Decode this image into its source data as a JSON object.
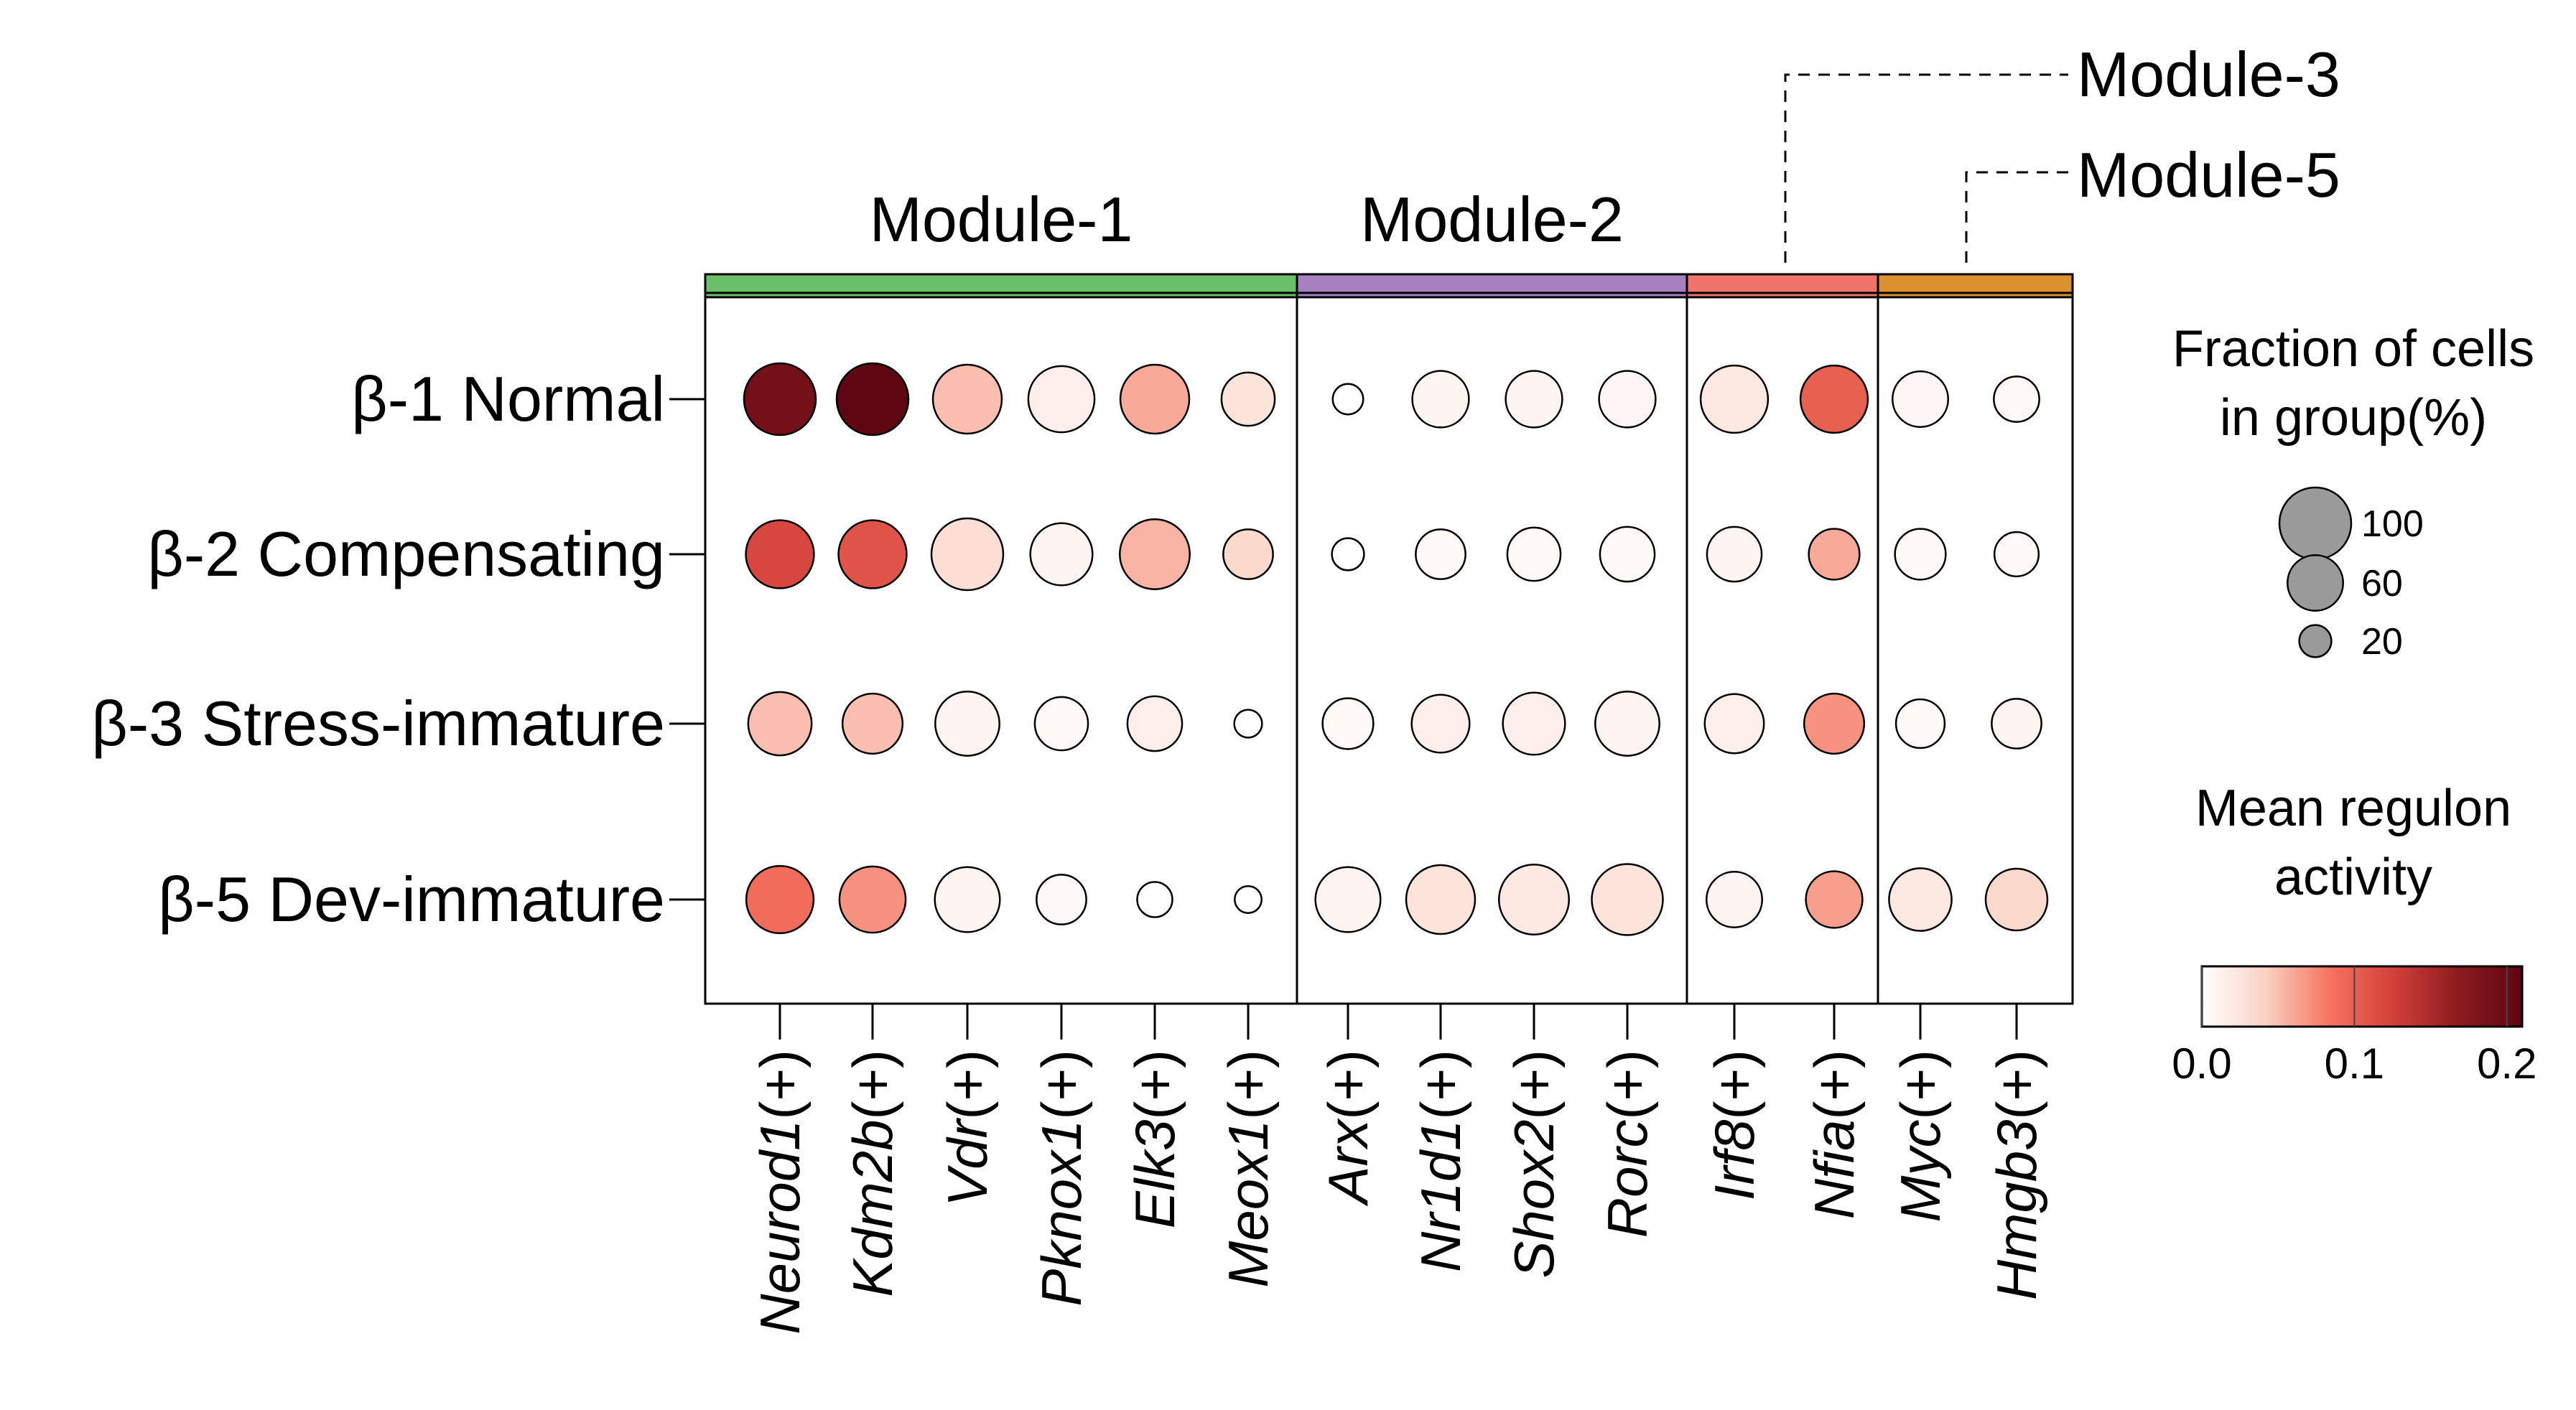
{
  "chart_data": {
    "type": "dotplot",
    "rows": [
      "β-1 Normal",
      "β-2 Compensating",
      "β-3 Stress-immature",
      "β-5 Dev-immature"
    ],
    "columns": [
      "Neurod1(+)",
      "Kdm2b(+)",
      "Vdr(+)",
      "Pknox1(+)",
      "Elk3(+)",
      "Meox1(+)",
      "Arx(+)",
      "Nr1d1(+)",
      "Shox2(+)",
      "Rorc(+)",
      "Irf8(+)",
      "Nfia(+)",
      "Myc(+)",
      "Hmgb3(+)"
    ],
    "modules": [
      {
        "label": "Module-1",
        "start": 0,
        "count": 6,
        "color": "#6abf69"
      },
      {
        "label": "Module-2",
        "start": 6,
        "count": 4,
        "color": "#a87fbf"
      },
      {
        "label": "Module-3",
        "start": 10,
        "count": 2,
        "color": "#f07469"
      },
      {
        "label": "Module-5",
        "start": 12,
        "count": 2,
        "color": "#dc902e"
      }
    ],
    "fraction": [
      [
        100,
        100,
        92,
        85,
        92,
        55,
        18,
        62,
        62,
        62,
        88,
        88,
        60,
        40
      ],
      [
        90,
        90,
        100,
        75,
        95,
        48,
        20,
        48,
        55,
        58,
        58,
        50,
        50,
        38
      ],
      [
        78,
        70,
        80,
        55,
        58,
        15,
        50,
        65,
        75,
        80,
        68,
        70,
        46,
        48
      ],
      [
        88,
        85,
        82,
        48,
        24,
        14,
        82,
        92,
        95,
        98,
        60,
        62,
        76,
        74
      ]
    ],
    "activity": [
      [
        0.19,
        0.21,
        0.05,
        0.015,
        0.06,
        0.025,
        0.0,
        0.01,
        0.01,
        0.008,
        0.02,
        0.1,
        0.008,
        0.005
      ],
      [
        0.12,
        0.11,
        0.03,
        0.01,
        0.055,
        0.035,
        0.0,
        0.005,
        0.005,
        0.005,
        0.01,
        0.06,
        0.005,
        0.005
      ],
      [
        0.05,
        0.05,
        0.01,
        0.005,
        0.015,
        0.0,
        0.005,
        0.015,
        0.015,
        0.01,
        0.015,
        0.07,
        0.005,
        0.01
      ],
      [
        0.09,
        0.07,
        0.01,
        0.005,
        0.0,
        0.0,
        0.01,
        0.025,
        0.02,
        0.025,
        0.01,
        0.065,
        0.02,
        0.035
      ]
    ],
    "size_legend": {
      "title_lines": [
        "Fraction of cells",
        "in group(%)"
      ],
      "values": [
        100,
        60,
        20
      ],
      "labels": [
        "100",
        "60",
        "20"
      ]
    },
    "color_legend": {
      "title_lines": [
        "Mean regulon",
        "activity"
      ],
      "min": 0.0,
      "max": 0.21,
      "ticks": [
        0.0,
        0.1,
        0.2
      ],
      "tick_labels": [
        "0.0",
        "0.1",
        "0.2"
      ],
      "colors": [
        "#ffffff",
        "#fbd1c3",
        "#f6735e",
        "#d2403a",
        "#8c1a1f",
        "#5e0612"
      ]
    },
    "bubble_stroke": "#000000",
    "legend_bubble_fill": "#9a9a9a"
  }
}
